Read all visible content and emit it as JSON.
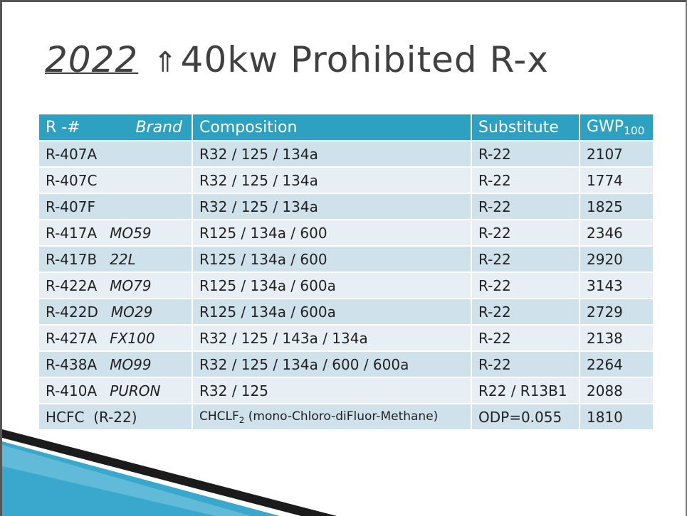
{
  "title": {
    "year": "2022",
    "arrow": "⇑",
    "rest": "40kw Prohibited R-x"
  },
  "table": {
    "headers": {
      "refrigerant": "R -#",
      "brand": "Brand",
      "composition": "Composition",
      "substitute": "Substitute",
      "gwp": "GWP",
      "gwp_subscript": "100"
    },
    "rows": [
      {
        "refrigerant": "R-407A",
        "brand": "",
        "composition": "R32 / 125 / 134a",
        "substitute": "R-22",
        "gwp": "2107"
      },
      {
        "refrigerant": "R-407C",
        "brand": "",
        "composition": "R32 / 125 / 134a",
        "substitute": "R-22",
        "gwp": "1774"
      },
      {
        "refrigerant": "R-407F",
        "brand": "",
        "composition": "R32 / 125 / 134a",
        "substitute": "R-22",
        "gwp": "1825"
      },
      {
        "refrigerant": "R-417A",
        "brand": "MO59",
        "composition": "R125 / 134a / 600",
        "substitute": "R-22",
        "gwp": "2346"
      },
      {
        "refrigerant": "R-417B",
        "brand": "22L",
        "composition": "R125 / 134a / 600",
        "substitute": "R-22",
        "gwp": "2920"
      },
      {
        "refrigerant": "R-422A",
        "brand": "MO79",
        "composition": "R125 / 134a / 600a",
        "substitute": "R-22",
        "gwp": "3143"
      },
      {
        "refrigerant": "R-422D",
        "brand": "MO29",
        "composition": "R125 / 134a / 600a",
        "substitute": "R-22",
        "gwp": "2729"
      },
      {
        "refrigerant": "R-427A",
        "brand": "FX100",
        "composition": "R32 / 125 / 143a / 134a",
        "substitute": "R-22",
        "gwp": "2138"
      },
      {
        "refrigerant": "R-438A",
        "brand": "MO99",
        "composition": "R32 / 125 / 134a / 600 / 600a",
        "substitute": "R-22",
        "gwp": "2264"
      },
      {
        "refrigerant": "R-410A",
        "brand": "PURON",
        "composition": "R32 / 125",
        "substitute": "R22 / R13B1",
        "gwp": "2088"
      }
    ],
    "hcfc_row": {
      "refrigerant": "HCFC  (R-22)",
      "composition_prefix": "CHCLF",
      "composition_subscript": "2",
      "composition_suffix": " (mono-Chloro-diFluor-Methane)",
      "substitute": "ODP=0.055",
      "gwp": "1810"
    }
  },
  "colors": {
    "header_bg": "#2ea1c0",
    "row_dark": "#cfe1ea",
    "row_light": "#e7eff4",
    "title_text": "#404040",
    "accent_blue": "#3aa7cc"
  }
}
